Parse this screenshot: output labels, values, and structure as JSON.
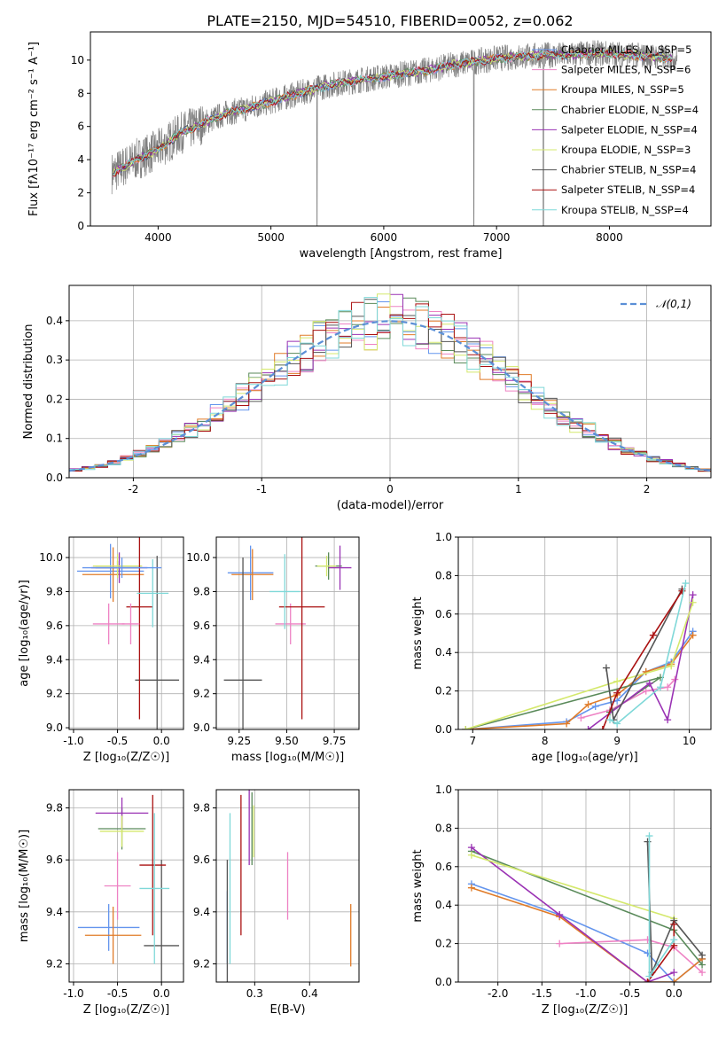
{
  "title": "PLATE=2150, MJD=54510, FIBERID=0052, z=0.062",
  "colors": [
    "#6495ED",
    "#EE82C4",
    "#E07B28",
    "#5A8A5A",
    "#9A32B4",
    "#D4E86C",
    "#555555",
    "#AA1111",
    "#7FD8D8"
  ],
  "chart_data": [
    {
      "type": "line",
      "name": "spectrum",
      "xlabel": "wavelength [Angstrom, rest frame]",
      "ylabel": "Flux [fλ10⁻¹⁷ erg cm⁻² s⁻¹ A⁻¹]",
      "xlim": [
        3400,
        8900
      ],
      "ylim": [
        0,
        11.7
      ],
      "xticks": [
        4000,
        5000,
        6000,
        7000,
        8000
      ],
      "yticks": [
        0,
        2,
        4,
        6,
        8,
        10
      ],
      "grid": false,
      "legend_position": "top-right",
      "continuum": {
        "x": [
          3600,
          3800,
          4000,
          4200,
          4400,
          4600,
          4800,
          5000,
          5200,
          5400,
          5600,
          5800,
          6000,
          6200,
          6400,
          6600,
          6800,
          7000,
          7200,
          7400,
          7600,
          7800,
          8000,
          8200,
          8400,
          8600
        ],
        "y": [
          3.2,
          4.0,
          4.6,
          5.6,
          6.2,
          6.8,
          7.1,
          7.5,
          7.9,
          8.3,
          8.6,
          8.8,
          9.0,
          9.2,
          9.4,
          9.7,
          9.9,
          10.1,
          10.2,
          10.3,
          10.3,
          10.4,
          10.4,
          10.3,
          10.2,
          10.1
        ]
      },
      "series": [
        {
          "name": "Chabrier MILES, N_SSP=5"
        },
        {
          "name": "Salpeter MILES, N_SSP=6"
        },
        {
          "name": "Kroupa MILES, N_SSP=5"
        },
        {
          "name": "Chabrier ELODIE, N_SSP=4"
        },
        {
          "name": "Salpeter ELODIE, N_SSP=4"
        },
        {
          "name": "Kroupa ELODIE, N_SSP=3"
        },
        {
          "name": "Chabrier STELIB, N_SSP=4"
        },
        {
          "name": "Salpeter STELIB, N_SSP=4"
        },
        {
          "name": "Kroupa STELIB, N_SSP=4"
        }
      ]
    },
    {
      "type": "line",
      "name": "residual-histogram",
      "xlabel": "(data-model)/error",
      "ylabel": "Normed distribution",
      "xlim": [
        -2.5,
        2.5
      ],
      "ylim": [
        0,
        0.49
      ],
      "xticks": [
        -2,
        -1,
        0,
        1,
        2
      ],
      "yticks": [
        0.0,
        0.1,
        0.2,
        0.3,
        0.4
      ],
      "grid": true,
      "legend": "𝒩(0,1)",
      "legend_position": "top-right",
      "bin_width": 0.1
    },
    {
      "type": "scatter",
      "name": "age-vs-Z",
      "xlabel": "Z [log₁₀(Z/Z☉)]",
      "ylabel": "age  [log₁₀(age/yr)]",
      "xlim": [
        -1.05,
        0.25
      ],
      "ylim": [
        8.99,
        10.12
      ],
      "xticks": [
        -1.0,
        -0.5,
        0.0
      ],
      "yticks": [
        9.0,
        9.2,
        9.4,
        9.6,
        9.8,
        10.0
      ],
      "grid": true,
      "points": [
        {
          "x": -0.58,
          "xerr": 0.38,
          "y": 9.92,
          "yerr": 0.16
        },
        {
          "x": -0.6,
          "xerr": 0.18,
          "y": 9.61,
          "yerr": 0.12
        },
        {
          "x": -0.55,
          "xerr": 0.35,
          "y": 9.9,
          "yerr": 0.16
        },
        {
          "x": -0.5,
          "xerr": 0.25,
          "y": 9.94,
          "yerr": 0.04
        },
        {
          "x": -0.48,
          "xerr": 0.32,
          "y": 9.94,
          "yerr": 0.09
        },
        {
          "x": -0.5,
          "xerr": 0.28,
          "y": 9.95,
          "yerr": 0.07
        },
        {
          "x": -0.05,
          "xerr": 0.25,
          "y": 9.28,
          "yerr": 0.73
        },
        {
          "x": -0.25,
          "xerr": 0.15,
          "y": 9.71,
          "yerr": 0.66
        },
        {
          "x": -0.1,
          "xerr": 0.18,
          "y": 9.79,
          "yerr": 0.2
        },
        {
          "x": -0.45,
          "xerr": 0.45,
          "y": 9.94,
          "yerr": 0.06
        },
        {
          "x": -0.35,
          "xerr": 0.1,
          "y": 9.61,
          "yerr": 0.12
        }
      ]
    },
    {
      "type": "scatter",
      "name": "age-vs-mass",
      "xlabel": "mass [log₁₀(M/M☉)]",
      "ylabel": "",
      "xlim": [
        9.13,
        9.88
      ],
      "ylim": [
        8.99,
        10.12
      ],
      "xticks": [
        9.25,
        9.5,
        9.75
      ],
      "yticks": [
        9.0,
        9.2,
        9.4,
        9.6,
        9.8,
        10.0
      ],
      "grid": true,
      "points": [
        {
          "x": 9.31,
          "xerr": 0.12,
          "y": 9.91,
          "yerr": 0.16
        },
        {
          "x": 9.52,
          "xerr": 0.08,
          "y": 9.61,
          "yerr": 0.12
        },
        {
          "x": 9.32,
          "xerr": 0.11,
          "y": 9.9,
          "yerr": 0.15
        },
        {
          "x": 9.72,
          "xerr": 0.07,
          "y": 9.95,
          "yerr": 0.08
        },
        {
          "x": 9.78,
          "xerr": 0.06,
          "y": 9.94,
          "yerr": 0.13
        },
        {
          "x": 9.71,
          "xerr": 0.05,
          "y": 9.95,
          "yerr": 0.06
        },
        {
          "x": 9.27,
          "xerr": 0.1,
          "y": 9.28,
          "yerr": 0.72
        },
        {
          "x": 9.58,
          "xerr": 0.12,
          "y": 9.71,
          "yerr": 0.66
        },
        {
          "x": 9.49,
          "xerr": 0.08,
          "y": 9.8,
          "yerr": 0.22
        }
      ]
    },
    {
      "type": "line",
      "name": "mass-weight-vs-age",
      "xlabel": "age  [log₁₀(age/yr)]",
      "ylabel": "mass weight",
      "xlim": [
        6.8,
        10.3
      ],
      "ylim": [
        0,
        1.0
      ],
      "xticks": [
        7,
        8,
        9,
        10
      ],
      "yticks": [
        0.0,
        0.2,
        0.4,
        0.6,
        0.8,
        1.0
      ],
      "grid": true,
      "series": [
        {
          "x": [
            6.9,
            8.3,
            8.7,
            9.0,
            9.4,
            9.75,
            10.05
          ],
          "y": [
            0.0,
            0.04,
            0.12,
            0.15,
            0.3,
            0.35,
            0.51
          ]
        },
        {
          "x": [
            8.5,
            8.9,
            9.4,
            9.7,
            9.8
          ],
          "y": [
            0.06,
            0.1,
            0.2,
            0.22,
            0.26
          ]
        },
        {
          "x": [
            6.9,
            8.3,
            8.6,
            9.0,
            9.4,
            9.75,
            10.05
          ],
          "y": [
            0.0,
            0.03,
            0.13,
            0.18,
            0.3,
            0.34,
            0.49
          ]
        },
        {
          "x": [
            6.9,
            9.6,
            8.9
          ],
          "y": [
            0.0,
            0.27,
            0.09
          ]
        },
        {
          "x": [
            8.6,
            9.45,
            9.7,
            10.05
          ],
          "y": [
            0.0,
            0.24,
            0.05,
            0.7
          ]
        },
        {
          "x": [
            6.9,
            9.0,
            9.75,
            10.05
          ],
          "y": [
            0.0,
            0.25,
            0.33,
            0.66
          ]
        },
        {
          "x": [
            8.85,
            8.95,
            9.9
          ],
          "y": [
            0.32,
            0.05,
            0.73
          ]
        },
        {
          "x": [
            8.8,
            9.0,
            9.5,
            9.9
          ],
          "y": [
            0.0,
            0.19,
            0.49,
            0.72
          ]
        },
        {
          "x": [
            8.9,
            9.0,
            9.6,
            9.95
          ],
          "y": [
            0.05,
            0.03,
            0.22,
            0.76
          ]
        }
      ]
    },
    {
      "type": "scatter",
      "name": "mass-vs-Z",
      "xlabel": "Z [log₁₀(Z/Z☉)]",
      "ylabel": "mass [log₁₀(M/M☉)]",
      "xlim": [
        -1.05,
        0.25
      ],
      "ylim": [
        9.13,
        9.87
      ],
      "xticks": [
        -1.0,
        -0.5,
        0.0
      ],
      "yticks": [
        9.2,
        9.4,
        9.6,
        9.8
      ],
      "grid": true,
      "points": [
        {
          "x": -0.6,
          "xerr": 0.35,
          "y": 9.34,
          "yerr": 0.09
        },
        {
          "x": -0.5,
          "xerr": 0.15,
          "y": 9.5,
          "yerr": 0.13
        },
        {
          "x": -0.55,
          "xerr": 0.32,
          "y": 9.31,
          "yerr": 0.11
        },
        {
          "x": -0.45,
          "xerr": 0.27,
          "y": 9.72,
          "yerr": 0.08
        },
        {
          "x": -0.45,
          "xerr": 0.3,
          "y": 9.78,
          "yerr": 0.06
        },
        {
          "x": -0.45,
          "xerr": 0.25,
          "y": 9.71,
          "yerr": 0.06
        },
        {
          "x": 0.0,
          "xerr": 0.2,
          "y": 9.27,
          "yerr": 0.33
        },
        {
          "x": -0.1,
          "xerr": 0.15,
          "y": 9.58,
          "yerr": 0.27
        },
        {
          "x": -0.08,
          "xerr": 0.17,
          "y": 9.49,
          "yerr": 0.29
        }
      ]
    },
    {
      "type": "scatter",
      "name": "mass-vs-EBV",
      "xlabel": "E(B-V)",
      "ylabel": "",
      "xlim": [
        0.23,
        0.49
      ],
      "ylim": [
        9.13,
        9.87
      ],
      "xticks": [
        0.3,
        0.4
      ],
      "yticks": [
        9.2,
        9.4,
        9.6,
        9.8
      ],
      "grid": true,
      "points": [
        {
          "x": 0.25,
          "xerr": 0.0,
          "y": 9.34,
          "yerr": 0.14
        },
        {
          "x": 0.36,
          "xerr": 0.0,
          "y": 9.5,
          "yerr": 0.13
        },
        {
          "x": 0.475,
          "xerr": 0.0,
          "y": 9.31,
          "yerr": 0.12
        },
        {
          "x": 0.295,
          "xerr": 0.0,
          "y": 9.72,
          "yerr": 0.14
        },
        {
          "x": 0.29,
          "xerr": 0.0,
          "y": 9.78,
          "yerr": 0.2
        },
        {
          "x": 0.298,
          "xerr": 0.0,
          "y": 9.71,
          "yerr": 0.1
        },
        {
          "x": 0.25,
          "xerr": 0.0,
          "y": 9.27,
          "yerr": 0.33
        },
        {
          "x": 0.275,
          "xerr": 0.0,
          "y": 9.58,
          "yerr": 0.27
        },
        {
          "x": 0.255,
          "xerr": 0.0,
          "y": 9.49,
          "yerr": 0.29
        }
      ]
    },
    {
      "type": "line",
      "name": "mass-weight-vs-Z",
      "xlabel": "Z [log₁₀(Z/Z☉)]",
      "ylabel": "mass weight",
      "xlim": [
        -2.45,
        0.42
      ],
      "ylim": [
        0,
        1.0
      ],
      "xticks": [
        -2.0,
        -1.5,
        -1.0,
        -0.5,
        0.0
      ],
      "yticks": [
        0.0,
        0.2,
        0.4,
        0.6,
        0.8,
        1.0
      ],
      "grid": true,
      "series": [
        {
          "x": [
            -2.3,
            -1.3,
            -0.3,
            0.0,
            0.32
          ],
          "y": [
            0.51,
            0.35,
            0.15,
            0.0,
            0.12
          ]
        },
        {
          "x": [
            -1.3,
            -0.3,
            0.0,
            0.32
          ],
          "y": [
            0.2,
            0.22,
            0.18,
            0.05
          ]
        },
        {
          "x": [
            -2.3,
            -1.3,
            -0.3,
            0.0,
            0.32
          ],
          "y": [
            0.49,
            0.34,
            0.0,
            0.0,
            0.12
          ]
        },
        {
          "x": [
            -2.3,
            0.0,
            0.32
          ],
          "y": [
            0.68,
            0.27,
            0.09
          ]
        },
        {
          "x": [
            -2.3,
            -1.3,
            -0.3,
            0.0
          ],
          "y": [
            0.7,
            0.35,
            0.0,
            0.05
          ]
        },
        {
          "x": [
            -2.3,
            0.0
          ],
          "y": [
            0.66,
            0.33
          ]
        },
        {
          "x": [
            -0.3,
            -0.25,
            0.0,
            0.32
          ],
          "y": [
            0.73,
            0.05,
            0.32,
            0.14
          ]
        },
        {
          "x": [
            -0.3,
            0.0,
            0.0
          ],
          "y": [
            0.0,
            0.19,
            0.3
          ]
        },
        {
          "x": [
            -0.28,
            -0.28,
            0.0
          ],
          "y": [
            0.76,
            0.03,
            0.22
          ]
        }
      ]
    }
  ]
}
